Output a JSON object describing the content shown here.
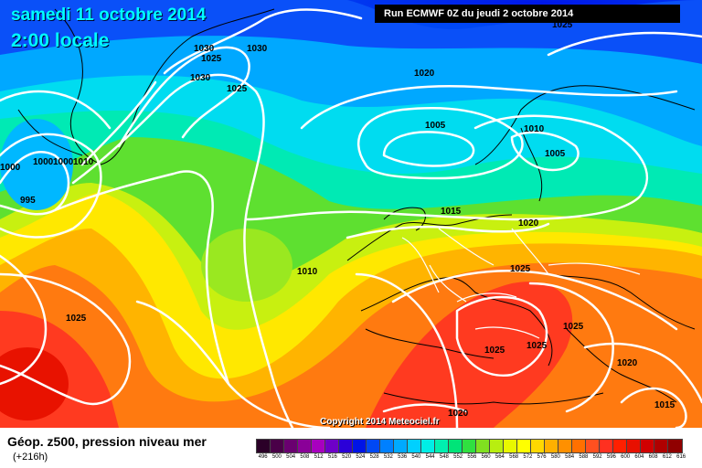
{
  "header": {
    "date_title": "samedi 11 octobre 2014",
    "time_title": "2:00 locale",
    "run_info": "Run ECMWF 0Z du jeudi 2 octobre 2014"
  },
  "copyright": "Copyright 2014 Meteociel.fr",
  "legend": {
    "title": "Géop. z500, pression niveau mer",
    "subtitle": "(+216h)",
    "colors": [
      "#2b0028",
      "#4a0048",
      "#6a0070",
      "#8a0098",
      "#a800bf",
      "#6e00c8",
      "#2b00d8",
      "#0014e6",
      "#0048f4",
      "#0080ff",
      "#00aaff",
      "#00d0ff",
      "#00eee6",
      "#00f0b0",
      "#00e478",
      "#30e040",
      "#80e020",
      "#b8ee10",
      "#e8f800",
      "#ffff00",
      "#ffd800",
      "#ffb000",
      "#ff9000",
      "#ff7000",
      "#ff5020",
      "#ff3020",
      "#ff2000",
      "#e81000",
      "#d00000",
      "#b00000",
      "#900000",
      "#700000",
      "#500000"
    ],
    "ticks": [
      "496",
      "500",
      "504",
      "508",
      "512",
      "516",
      "520",
      "524",
      "528",
      "532",
      "536",
      "540",
      "544",
      "548",
      "552",
      "556",
      "560",
      "564",
      "568",
      "572",
      "576",
      "580",
      "584",
      "588",
      "592",
      "596",
      "600",
      "604",
      "608",
      "612",
      "616"
    ]
  },
  "isobars": [
    {
      "label": "1030"
    },
    {
      "label": "1030"
    },
    {
      "label": "1025"
    },
    {
      "label": "1030"
    },
    {
      "label": "1025"
    },
    {
      "label": "1020"
    },
    {
      "label": "1005"
    },
    {
      "label": "1010"
    },
    {
      "label": "1005"
    },
    {
      "label": "1000"
    },
    {
      "label": "1000"
    },
    {
      "label": "1010"
    },
    {
      "label": "1015"
    },
    {
      "label": "1020"
    },
    {
      "label": "1025"
    },
    {
      "label": "1010"
    },
    {
      "label": "1025"
    },
    {
      "label": "995"
    },
    {
      "label": "1025"
    },
    {
      "label": "1025"
    },
    {
      "label": "1025"
    },
    {
      "label": "1020"
    },
    {
      "label": "1020"
    },
    {
      "label": "1015"
    },
    {
      "label": "1025"
    },
    {
      "label": "1020"
    },
    {
      "label": "1020"
    },
    {
      "label": "1000"
    },
    {
      "label": "1020"
    }
  ]
}
